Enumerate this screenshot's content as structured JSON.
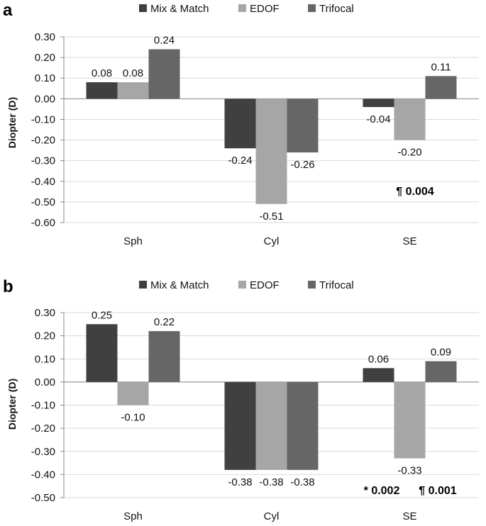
{
  "chart_data": [
    {
      "type": "bar",
      "panel_label": "a",
      "title": "",
      "ylabel": "Diopter (D)",
      "xlabel": "",
      "ylim": [
        -0.6,
        0.3
      ],
      "yticks": [
        "0.30",
        "0.20",
        "0.10",
        "0.00",
        "-0.10",
        "-0.20",
        "-0.30",
        "-0.40",
        "-0.50",
        "-0.60"
      ],
      "ytick_values": [
        0.3,
        0.2,
        0.1,
        0.0,
        -0.1,
        -0.2,
        -0.3,
        -0.4,
        -0.5,
        -0.6
      ],
      "categories": [
        "Sph",
        "Cyl",
        "SE"
      ],
      "legend_position": "top-center",
      "series": [
        {
          "name": "Mix & Match",
          "color": "#404040",
          "values": [
            0.08,
            -0.24,
            -0.04
          ],
          "labels": [
            "0.08",
            "-0.24",
            "-0.04"
          ]
        },
        {
          "name": "EDOF",
          "color": "#a6a6a6",
          "values": [
            0.08,
            -0.51,
            -0.2
          ],
          "labels": [
            "0.08",
            "-0.51",
            "-0.20"
          ]
        },
        {
          "name": "Trifocal",
          "color": "#666666",
          "values": [
            0.24,
            -0.26,
            0.11
          ],
          "labels": [
            "0.24",
            "-0.26",
            "0.11"
          ]
        }
      ],
      "annotations": [
        {
          "text": "¶ 0.004",
          "category": "SE"
        }
      ]
    },
    {
      "type": "bar",
      "panel_label": "b",
      "title": "",
      "ylabel": "Diopter (D)",
      "xlabel": "",
      "ylim": [
        -0.5,
        0.3
      ],
      "yticks": [
        "0.30",
        "0.20",
        "0.10",
        "0.00",
        "-0.10",
        "-0.20",
        "-0.30",
        "-0.40",
        "-0.50"
      ],
      "ytick_values": [
        0.3,
        0.2,
        0.1,
        0.0,
        -0.1,
        -0.2,
        -0.3,
        -0.4,
        -0.5
      ],
      "categories": [
        "Sph",
        "Cyl",
        "SE"
      ],
      "legend_position": "top-center",
      "series": [
        {
          "name": "Mix & Match",
          "color": "#404040",
          "values": [
            0.25,
            -0.38,
            0.06
          ],
          "labels": [
            "0.25",
            "-0.38",
            "0.06"
          ]
        },
        {
          "name": "EDOF",
          "color": "#a6a6a6",
          "values": [
            -0.1,
            -0.38,
            -0.33
          ],
          "labels": [
            "-0.10",
            "-0.38",
            "-0.33"
          ]
        },
        {
          "name": "Trifocal",
          "color": "#666666",
          "values": [
            0.22,
            -0.38,
            0.09
          ],
          "labels": [
            "0.22",
            "-0.38",
            "0.09"
          ]
        }
      ],
      "annotations": [
        {
          "text": "* 0.002",
          "category": "SE"
        },
        {
          "text": "¶ 0.001",
          "category": "SE"
        }
      ]
    }
  ]
}
